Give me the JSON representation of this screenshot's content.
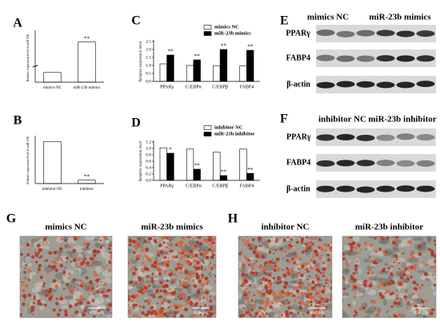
{
  "chart_data": [
    {
      "type": "bar",
      "label": "A",
      "y_label": "Relative expression level of miR-23b",
      "categories": [
        "mimics NC",
        "miR-23b mimics"
      ],
      "series": [
        {
          "color": "#ffffff",
          "values": [
            1,
            330
          ],
          "annotations": [
            null,
            "**"
          ]
        }
      ],
      "ylim": [
        0,
        360
      ],
      "axis_break": [
        1.5,
        250
      ]
    },
    {
      "type": "bar",
      "label": "B",
      "y_label": "Relative expression level of miR-23b",
      "categories": [
        "inhibitor-NC",
        "inhibitor"
      ],
      "series": [
        {
          "color": "#ffffff",
          "values": [
            1,
            0.08
          ],
          "annotations": [
            null,
            "**"
          ]
        }
      ],
      "ylim": [
        0,
        1.1
      ]
    },
    {
      "type": "bar",
      "label": "C",
      "y_label": "Relative expression level",
      "categories": [
        "PPARγ",
        "C/EBPα",
        "C/EBPβ",
        "FABP4"
      ],
      "series": [
        {
          "name": "mimics NC",
          "color": "#ffffff",
          "values": [
            1.1,
            1.0,
            0.97,
            0.97
          ],
          "annotations": [
            null,
            null,
            null,
            null
          ]
        },
        {
          "name": "miR-23b mimics",
          "color": "#000000",
          "values": [
            1.65,
            1.35,
            2.0,
            1.95
          ],
          "annotations": [
            "**",
            "**",
            "**",
            "**"
          ]
        }
      ],
      "ylim": [
        0,
        2.5
      ],
      "yticks": [
        {
          "value": 0,
          "label": "0.0"
        },
        {
          "value": 0.5,
          "label": "0.5"
        },
        {
          "value": 1,
          "label": "1.0"
        },
        {
          "value": 1.5,
          "label": "1.5"
        },
        {
          "value": 2,
          "label": "2.0"
        },
        {
          "value": 2.5,
          "label": "2.5"
        }
      ],
      "legend": "upper right"
    },
    {
      "type": "bar",
      "label": "D",
      "y_label": "Relative expression level",
      "categories": [
        "PPARγ",
        "C/EBPα",
        "C/EBPβ",
        "FABP4"
      ],
      "series": [
        {
          "name": "inhibitor NC",
          "color": "#ffffff",
          "values": [
            1.02,
            0.98,
            0.88,
            0.98
          ],
          "annotations": [
            null,
            null,
            null,
            null
          ]
        },
        {
          "name": "miR-23b inhibitor",
          "color": "#000000",
          "values": [
            0.85,
            0.35,
            0.15,
            0.22
          ],
          "annotations": [
            "*",
            "**",
            "**",
            "**"
          ]
        }
      ],
      "ylim": [
        0,
        1.2
      ],
      "yticks": [
        {
          "value": 0,
          "label": "0.0"
        },
        {
          "value": 0.2,
          "label": "0.2"
        },
        {
          "value": 0.4,
          "label": "0.4"
        },
        {
          "value": 0.6,
          "label": "0.6"
        },
        {
          "value": 0.8,
          "label": "0.8"
        },
        {
          "value": 1,
          "label": "1.0"
        },
        {
          "value": 1.2,
          "label": "1.2"
        }
      ],
      "legend": "upper right"
    }
  ],
  "blots": [
    {
      "label": "E",
      "groups": [
        "mimics NC",
        "miR-23b mimics"
      ],
      "rows": [
        "PPARγ",
        "FABP4",
        "β-actin"
      ]
    },
    {
      "label": "F",
      "groups": [
        "inhibitor NC",
        "miR-23b inhibitor"
      ],
      "rows": [
        "PPARγ",
        "FABP4",
        "β-actin"
      ]
    }
  ],
  "micrographs": [
    {
      "label": "G",
      "groups": [
        "mimics NC",
        "miR-23b mimics"
      ],
      "scale_bars": [
        "400 μm",
        "400 μm"
      ]
    },
    {
      "label": "H",
      "groups": [
        "inhibitor NC",
        "miR-23b inhibitor"
      ],
      "scale_bars": [
        "400 μm",
        "400 μm"
      ]
    }
  ]
}
